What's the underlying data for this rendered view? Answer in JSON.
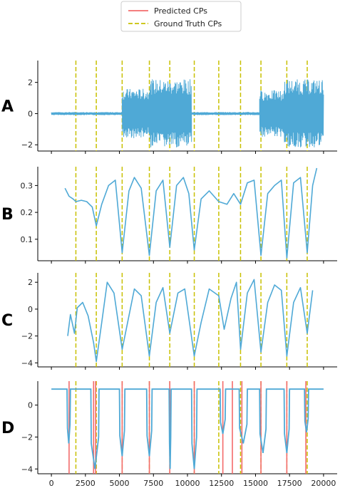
{
  "legend": {
    "items": [
      {
        "label": "Predicted CPs",
        "color": "#f36b6b",
        "style": "solid"
      },
      {
        "label": "Ground Truth CPs",
        "color": "#c8c000",
        "style": "dashed"
      }
    ],
    "position": "top-center"
  },
  "colors": {
    "signal": "#4fa9d6",
    "predicted_cp": "#f36b6b",
    "ground_truth_cp": "#c8c000",
    "hit_marker": "#e8a020"
  },
  "chart_data": [
    {
      "panel": "A",
      "type": "line",
      "xlim": [
        -1000,
        21000
      ],
      "ylim": [
        -2.4,
        3.4
      ],
      "yticks": [
        -2,
        0,
        2
      ],
      "grid": false,
      "ground_truth_cps": [
        1800,
        3300,
        5200,
        7200,
        8700,
        10500,
        12300,
        13900,
        15400,
        17300,
        18800
      ],
      "segments": [
        {
          "x0": 0,
          "x1": 5200,
          "amplitude": 0.1,
          "note": "quiet"
        },
        {
          "x0": 5200,
          "x1": 7200,
          "amplitude": 1.6,
          "note": "active"
        },
        {
          "x0": 7200,
          "x1": 10300,
          "amplitude": 2.2,
          "note": "active"
        },
        {
          "x0": 10300,
          "x1": 15300,
          "amplitude": 0.1,
          "note": "quiet"
        },
        {
          "x0": 15300,
          "x1": 17100,
          "amplitude": 1.5,
          "note": "active"
        },
        {
          "x0": 17100,
          "x1": 20000,
          "amplitude": 2.2,
          "note": "active"
        }
      ]
    },
    {
      "panel": "B",
      "type": "line",
      "xlim": [
        -1000,
        21000
      ],
      "ylim": [
        0.02,
        0.37
      ],
      "yticks": [
        0.1,
        0.2,
        0.3
      ],
      "grid": false,
      "ground_truth_cps": [
        1800,
        3300,
        5200,
        7200,
        8700,
        10500,
        12300,
        13900,
        15400,
        17300,
        18800
      ],
      "x": [
        1000,
        1300,
        1600,
        1800,
        2200,
        2600,
        3000,
        3300,
        3700,
        4200,
        4700,
        5200,
        5700,
        6100,
        6600,
        7200,
        7700,
        8200,
        8700,
        9200,
        9700,
        10100,
        10500,
        11000,
        11600,
        12300,
        12900,
        13400,
        13900,
        14400,
        14900,
        15400,
        15900,
        16400,
        16900,
        17300,
        17800,
        18300,
        18800,
        19200,
        19500
      ],
      "y": [
        0.29,
        0.26,
        0.25,
        0.24,
        0.245,
        0.24,
        0.22,
        0.15,
        0.23,
        0.3,
        0.32,
        0.05,
        0.28,
        0.33,
        0.29,
        0.04,
        0.28,
        0.32,
        0.07,
        0.3,
        0.33,
        0.27,
        0.06,
        0.25,
        0.28,
        0.24,
        0.23,
        0.27,
        0.23,
        0.31,
        0.32,
        0.04,
        0.27,
        0.3,
        0.32,
        0.03,
        0.31,
        0.33,
        0.05,
        0.3,
        0.365
      ]
    },
    {
      "panel": "C",
      "type": "line",
      "xlim": [
        -1000,
        21000
      ],
      "ylim": [
        -4.3,
        2.7
      ],
      "yticks": [
        -4,
        -2,
        0,
        2
      ],
      "grid": false,
      "ground_truth_cps": [
        1800,
        3300,
        5200,
        7200,
        8700,
        10500,
        12300,
        13900,
        15400,
        17300,
        18800
      ],
      "x": [
        1200,
        1400,
        1700,
        1900,
        2300,
        2700,
        3100,
        3300,
        3700,
        4100,
        4600,
        5200,
        5700,
        6100,
        6600,
        7200,
        7700,
        8200,
        8700,
        9300,
        9800,
        10500,
        11000,
        11600,
        12300,
        12700,
        13200,
        13600,
        13900,
        14400,
        14900,
        15400,
        15900,
        16400,
        16900,
        17300,
        17800,
        18300,
        18800,
        19200
      ],
      "y": [
        -2.0,
        -0.4,
        -1.8,
        0.1,
        0.5,
        -0.5,
        -2.5,
        -3.9,
        -1.0,
        2.0,
        1.2,
        -3.0,
        -0.5,
        1.5,
        1.0,
        -3.5,
        0.5,
        1.6,
        -1.8,
        1.2,
        1.5,
        -3.5,
        -1.0,
        1.5,
        1.0,
        -1.5,
        0.8,
        2.0,
        -3.0,
        1.2,
        2.2,
        -3.2,
        0.5,
        1.8,
        1.4,
        -3.5,
        0.5,
        1.6,
        -1.8,
        1.4
      ]
    },
    {
      "panel": "D",
      "type": "line",
      "xlim": [
        -1000,
        21000
      ],
      "ylim": [
        -4.3,
        1.5
      ],
      "yticks": [
        -4,
        -2,
        0
      ],
      "xticks": [
        0,
        2500,
        5000,
        7500,
        10000,
        12500,
        15000,
        17500,
        20000
      ],
      "grid": false,
      "ground_truth_cps": [
        1800,
        3300,
        5200,
        7200,
        8700,
        10500,
        12300,
        13900,
        15400,
        17300,
        18800
      ],
      "predicted_cps": [
        1300,
        3100,
        3250,
        5200,
        7200,
        8700,
        10500,
        12600,
        13300,
        14000,
        15400,
        17300,
        18700
      ],
      "baseline": 1.0,
      "dips": [
        {
          "x0": 1150,
          "x1": 1400,
          "depth": -2.4
        },
        {
          "x0": 2900,
          "x1": 3500,
          "depth": -4.0
        },
        {
          "x0": 5000,
          "x1": 5400,
          "depth": -3.2
        },
        {
          "x0": 7000,
          "x1": 7400,
          "depth": -3.2
        },
        {
          "x0": 8650,
          "x1": 8800,
          "depth": -4.0
        },
        {
          "x0": 10300,
          "x1": 10700,
          "depth": -4.0
        },
        {
          "x0": 12400,
          "x1": 12800,
          "depth": -1.8
        },
        {
          "x0": 13800,
          "x1": 14400,
          "depth": -2.4
        },
        {
          "x0": 15300,
          "x1": 15800,
          "depth": -3.0
        },
        {
          "x0": 17100,
          "x1": 17500,
          "depth": -3.0
        },
        {
          "x0": 18600,
          "x1": 18900,
          "depth": -1.7
        }
      ]
    }
  ]
}
